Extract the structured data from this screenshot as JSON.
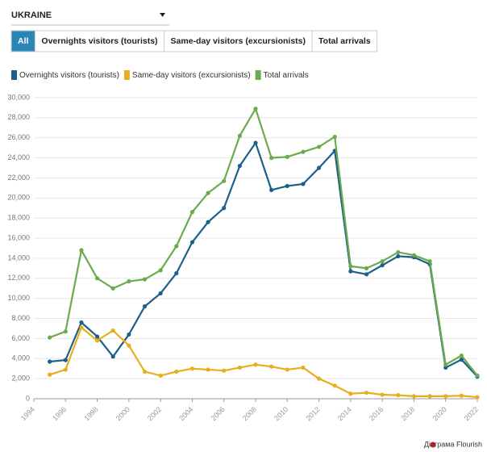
{
  "controls": {
    "dropdown": "UKRAINE",
    "buttons": [
      "All",
      "Overnights visitors (tourists)",
      "Same-day visitors (excursionists)",
      "Total arrivals"
    ]
  },
  "chart_data": {
    "type": "line",
    "x": [
      1995,
      1996,
      1997,
      1998,
      1999,
      2000,
      2001,
      2002,
      2003,
      2004,
      2005,
      2006,
      2007,
      2008,
      2009,
      2010,
      2011,
      2012,
      2013,
      2014,
      2015,
      2016,
      2017,
      2018,
      2019,
      2020,
      2021,
      2022
    ],
    "series": [
      {
        "name": "Overnights visitors (tourists)",
        "color": "#1d5f8a",
        "values": [
          3700,
          3850,
          7600,
          6200,
          4200,
          6400,
          9200,
          10500,
          12500,
          15600,
          17600,
          19000,
          23200,
          25500,
          20800,
          21200,
          21400,
          23000,
          24700,
          12700,
          12400,
          13300,
          14200,
          14100,
          13400,
          3100,
          3900,
          2200
        ]
      },
      {
        "name": "Same-day visitors (excursionists)",
        "color": "#e8ae1c",
        "values": [
          2400,
          2900,
          7100,
          5800,
          6800,
          5300,
          2700,
          2300,
          2700,
          3000,
          2900,
          2800,
          3100,
          3400,
          3200,
          2900,
          3100,
          2000,
          1300,
          500,
          600,
          400,
          350,
          250,
          250,
          250,
          300,
          150
        ]
      },
      {
        "name": "Total arrivals",
        "color": "#6aab4d",
        "values": [
          6100,
          6700,
          14800,
          12000,
          11000,
          11700,
          11900,
          12800,
          15200,
          18600,
          20500,
          21700,
          26200,
          28900,
          24000,
          24100,
          24600,
          25100,
          26100,
          13200,
          13000,
          13700,
          14600,
          14300,
          13700,
          3400,
          4300,
          2300
        ]
      }
    ],
    "xlim": [
      1994,
      2022
    ],
    "xticks": [
      1994,
      1996,
      1998,
      2000,
      2002,
      2004,
      2006,
      2008,
      2010,
      2012,
      2014,
      2016,
      2018,
      2020,
      2022
    ],
    "ylim": [
      0,
      30000
    ],
    "yticks": [
      0,
      {
        "value": 2000,
        "label": "2,000"
      },
      {
        "value": 4000,
        "label": "4,000"
      },
      {
        "value": 6000,
        "label": "6,000"
      },
      {
        "value": 8000,
        "label": "8,000"
      },
      {
        "value": 10000,
        "label": "10,000"
      },
      {
        "value": 12000,
        "label": "12,000"
      },
      {
        "value": 14000,
        "label": "14,000"
      },
      {
        "value": 16000,
        "label": "16,000"
      },
      {
        "value": 18000,
        "label": "18,000"
      },
      {
        "value": 20000,
        "label": "20,000"
      },
      {
        "value": 22000,
        "label": "22,000"
      },
      {
        "value": 24000,
        "label": "24,000"
      },
      {
        "value": 26000,
        "label": "26,000"
      },
      {
        "value": 28000,
        "label": "28,000"
      },
      {
        "value": 30000,
        "label": "30,000"
      }
    ],
    "grid": true
  },
  "footer": "Діаграма Flourish"
}
